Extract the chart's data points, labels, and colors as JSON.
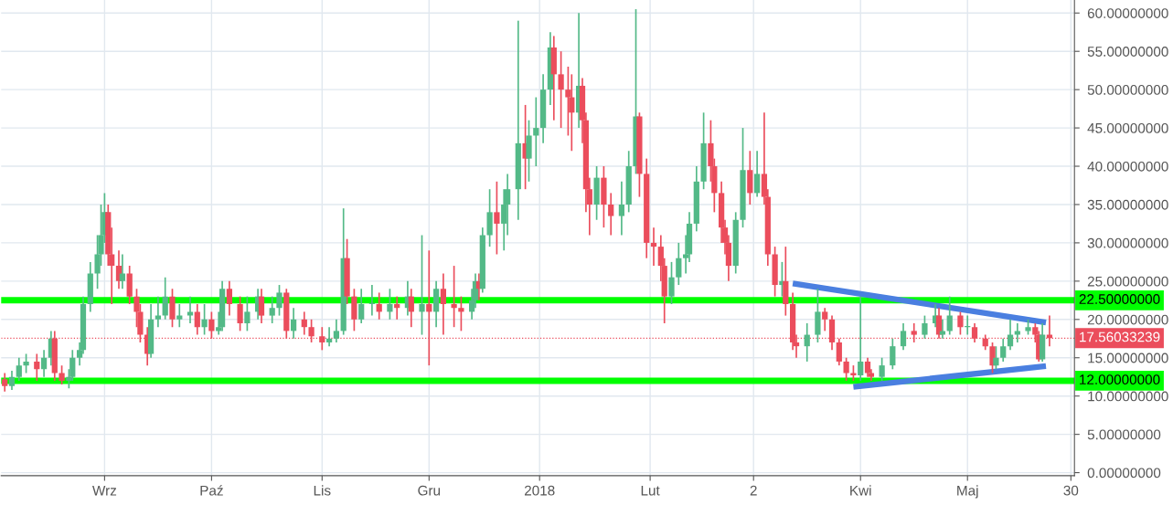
{
  "chart_data": {
    "type": "candlestick",
    "x": [
      "2017-08-04",
      "2017-08-06",
      "2017-08-08",
      "2017-08-10",
      "2017-08-13",
      "2017-08-15",
      "2017-08-17",
      "2017-08-18",
      "2017-08-20",
      "2017-08-22",
      "2017-08-23",
      "2017-08-25",
      "2017-08-26",
      "2017-08-28",
      "2017-08-30",
      "2017-08-31",
      "2017-09-01",
      "2017-09-02",
      "2017-09-03",
      "2017-09-05",
      "2017-09-06",
      "2017-09-08",
      "2017-09-10",
      "2017-09-11",
      "2017-09-13",
      "2017-09-14",
      "2017-09-16",
      "2017-09-18",
      "2017-09-20",
      "2017-09-22",
      "2017-09-25",
      "2017-09-27",
      "2017-09-29",
      "2017-10-01",
      "2017-10-03",
      "2017-10-04",
      "2017-10-06",
      "2017-10-09",
      "2017-10-11",
      "2017-10-14",
      "2017-10-15",
      "2017-10-18",
      "2017-10-20",
      "2017-10-22",
      "2017-10-24",
      "2017-10-27",
      "2017-10-29",
      "2017-11-01",
      "2017-11-03",
      "2017-11-05",
      "2017-11-07",
      "2017-11-08",
      "2017-11-10",
      "2017-11-12",
      "2017-11-15",
      "2017-11-17",
      "2017-11-20",
      "2017-11-22",
      "2017-11-25",
      "2017-11-26",
      "2017-11-29",
      "2017-12-01",
      "2017-12-03",
      "2017-12-05",
      "2017-12-08",
      "2017-12-10",
      "2017-12-13",
      "2017-12-14",
      "2017-12-15",
      "2017-12-16",
      "2017-12-18",
      "2017-12-20",
      "2017-12-22",
      "2017-12-23",
      "2017-12-26",
      "2017-12-28",
      "2017-12-29",
      "2017-12-31",
      "2018-01-02",
      "2018-01-04",
      "2018-01-05",
      "2018-01-07",
      "2018-01-09",
      "2018-01-10",
      "2018-01-12",
      "2018-01-13",
      "2018-01-14",
      "2018-01-15",
      "2018-01-17",
      "2018-01-19",
      "2018-01-21",
      "2018-01-24",
      "2018-01-26",
      "2018-01-28",
      "2018-01-29",
      "2018-01-31",
      "2018-02-02",
      "2018-02-04",
      "2018-02-05",
      "2018-02-07",
      "2018-02-09",
      "2018-02-11",
      "2018-02-12",
      "2018-02-14",
      "2018-02-16",
      "2018-02-18",
      "2018-02-19",
      "2018-02-21",
      "2018-02-22",
      "2018-02-23",
      "2018-02-25",
      "2018-02-27",
      "2018-03-01",
      "2018-03-03",
      "2018-03-05",
      "2018-03-06",
      "2018-03-08",
      "2018-03-10",
      "2018-03-11",
      "2018-03-13",
      "2018-03-14",
      "2018-03-17",
      "2018-03-20",
      "2018-03-22",
      "2018-03-24",
      "2018-03-26",
      "2018-03-28",
      "2018-03-30",
      "2018-04-01",
      "2018-04-03",
      "2018-04-04",
      "2018-04-07",
      "2018-04-10",
      "2018-04-13",
      "2018-04-16",
      "2018-04-19",
      "2018-04-22",
      "2018-04-23",
      "2018-04-24",
      "2018-04-26",
      "2018-04-29",
      "2018-05-01",
      "2018-05-03",
      "2018-05-06",
      "2018-05-08",
      "2018-05-09",
      "2018-05-11",
      "2018-05-13",
      "2018-05-15",
      "2018-05-18",
      "2018-05-20",
      "2018-05-21",
      "2018-05-22",
      "2018-05-24"
    ],
    "ohlc": [
      [
        12.2,
        13,
        10.6,
        11.3
      ],
      [
        11.3,
        13.3,
        10.8,
        12.5
      ],
      [
        12.5,
        15,
        12,
        14
      ],
      [
        14,
        15.5,
        13,
        14.5
      ],
      [
        14.5,
        15.5,
        12,
        13.5
      ],
      [
        13.5,
        16,
        12.5,
        15
      ],
      [
        15,
        18.5,
        14,
        17.5
      ],
      [
        17.5,
        18.5,
        12,
        13
      ],
      [
        13,
        14,
        11.5,
        12
      ],
      [
        12,
        13.5,
        11,
        12.5
      ],
      [
        12.5,
        16,
        12,
        15
      ],
      [
        15,
        17,
        14,
        16
      ],
      [
        16,
        23,
        15.5,
        22
      ],
      [
        22,
        27.5,
        21,
        26
      ],
      [
        26,
        31,
        24,
        28.5
      ],
      [
        28.5,
        35,
        27,
        31
      ],
      [
        31,
        36.5,
        30,
        34
      ],
      [
        34,
        35,
        27,
        28.5
      ],
      [
        28.5,
        32,
        22,
        27
      ],
      [
        27,
        29,
        24,
        25
      ],
      [
        25,
        28.5,
        24,
        26
      ],
      [
        26,
        27,
        22,
        23
      ],
      [
        23,
        24,
        19,
        21
      ],
      [
        21,
        22,
        17,
        18
      ],
      [
        18,
        19,
        14,
        15.5
      ],
      [
        15.5,
        22,
        15,
        20
      ],
      [
        20,
        23,
        19,
        20.5
      ],
      [
        20.5,
        25.5,
        20,
        23
      ],
      [
        23,
        24,
        19,
        20
      ],
      [
        20,
        22,
        19,
        20.5
      ],
      [
        20.5,
        23,
        19.5,
        21
      ],
      [
        21,
        22,
        18,
        19
      ],
      [
        19,
        22,
        18,
        20
      ],
      [
        20,
        21,
        17.5,
        18.5
      ],
      [
        18.5,
        21,
        18,
        19
      ],
      [
        19,
        25,
        18.5,
        24
      ],
      [
        24,
        25,
        20.5,
        22
      ],
      [
        22,
        23,
        18.5,
        19.5
      ],
      [
        19.5,
        23,
        18.5,
        21
      ],
      [
        21,
        24,
        20,
        23
      ],
      [
        23,
        24,
        19.5,
        20.5
      ],
      [
        20.5,
        23,
        19.5,
        21.5
      ],
      [
        21.5,
        24.5,
        20.5,
        23.5
      ],
      [
        23.5,
        24,
        17.5,
        18.5
      ],
      [
        18.5,
        21.5,
        17.5,
        20
      ],
      [
        20,
        21,
        18,
        19
      ],
      [
        19,
        20,
        17,
        17.8
      ],
      [
        17.8,
        19,
        16,
        17
      ],
      [
        17,
        19,
        16.5,
        17.5
      ],
      [
        17.5,
        20,
        17,
        18.5
      ],
      [
        18.5,
        34.5,
        18,
        28
      ],
      [
        28,
        30.5,
        22,
        23
      ],
      [
        23,
        24,
        18.5,
        20
      ],
      [
        20,
        24,
        19.5,
        22
      ],
      [
        22,
        24.5,
        20.5,
        22
      ],
      [
        22,
        23.5,
        20,
        21
      ],
      [
        21,
        24,
        20,
        22
      ],
      [
        22,
        23,
        20,
        21.5
      ],
      [
        21.5,
        25,
        20.5,
        23
      ],
      [
        23,
        24,
        19,
        21
      ],
      [
        21,
        31,
        18,
        22
      ],
      [
        22,
        29,
        14,
        21
      ],
      [
        21,
        25,
        19,
        24
      ],
      [
        24,
        26,
        18,
        22
      ],
      [
        22,
        27,
        19,
        21.5
      ],
      [
        21.5,
        23,
        18.5,
        21
      ],
      [
        21,
        24,
        20,
        22.5
      ],
      [
        22.5,
        26,
        21.5,
        25
      ],
      [
        25,
        26,
        22.5,
        24
      ],
      [
        24,
        32,
        23.5,
        31
      ],
      [
        31,
        37,
        29.5,
        34
      ],
      [
        34,
        38,
        28.5,
        32.5
      ],
      [
        32.5,
        37,
        29,
        35
      ],
      [
        35,
        39,
        31,
        37
      ],
      [
        37,
        59,
        33,
        43
      ],
      [
        43,
        48,
        37,
        41
      ],
      [
        41,
        46,
        38,
        44
      ],
      [
        44,
        49,
        40,
        45
      ],
      [
        45,
        52,
        43,
        50
      ],
      [
        50,
        57.5,
        48,
        55.5
      ],
      [
        55.5,
        57,
        46,
        52
      ],
      [
        52,
        55,
        45,
        50
      ],
      [
        50,
        53,
        44,
        49
      ],
      [
        49,
        52,
        42,
        47
      ],
      [
        47,
        60,
        45,
        50.5
      ],
      [
        50.5,
        51.5,
        43,
        46
      ],
      [
        46,
        47,
        34,
        37
      ],
      [
        37,
        38.5,
        31,
        35
      ],
      [
        35,
        40,
        33,
        38.5
      ],
      [
        38.5,
        40,
        32,
        35
      ],
      [
        35,
        36.5,
        31,
        33.5
      ],
      [
        33.5,
        38,
        31,
        35
      ],
      [
        35,
        42,
        34,
        40
      ],
      [
        40,
        60.5,
        39,
        46.5
      ],
      [
        46.5,
        47,
        36,
        39
      ],
      [
        39,
        41,
        28,
        30
      ],
      [
        30,
        32,
        27,
        29.5
      ],
      [
        29.5,
        31,
        25,
        27
      ],
      [
        27,
        28,
        19.5,
        23
      ],
      [
        23,
        27.5,
        22,
        25.5
      ],
      [
        25.5,
        30,
        24.5,
        28
      ],
      [
        28,
        31,
        26,
        28.5
      ],
      [
        28.5,
        34,
        27.5,
        32.5
      ],
      [
        32.5,
        40,
        31.5,
        38
      ],
      [
        38,
        47,
        37,
        43
      ],
      [
        43,
        46,
        38,
        40
      ],
      [
        40,
        41,
        34,
        36.5
      ],
      [
        36.5,
        38,
        30,
        32
      ],
      [
        32,
        33,
        28.5,
        30
      ],
      [
        30,
        31,
        25,
        27
      ],
      [
        27,
        34,
        26,
        33
      ],
      [
        33,
        45,
        32,
        39.5
      ],
      [
        39.5,
        42,
        35,
        36.5
      ],
      [
        36.5,
        42,
        36,
        39
      ],
      [
        39,
        47,
        35,
        36
      ],
      [
        36,
        37,
        27,
        28.5
      ],
      [
        28.5,
        29.5,
        23,
        24.5
      ],
      [
        24.5,
        27.5,
        23,
        25
      ],
      [
        25,
        29.5,
        20.5,
        22
      ],
      [
        22,
        23.5,
        16,
        17
      ],
      [
        17,
        18,
        15,
        16.5
      ],
      [
        16.5,
        19.5,
        14.5,
        18
      ],
      [
        18,
        24,
        17,
        21
      ],
      [
        21,
        21.5,
        18.5,
        20
      ],
      [
        20,
        20.5,
        16,
        17
      ],
      [
        17,
        17.5,
        14,
        14.5
      ],
      [
        14.5,
        15,
        12,
        13
      ],
      [
        13,
        14,
        12,
        12.7
      ],
      [
        12.7,
        23,
        12,
        14.5
      ],
      [
        14.5,
        15,
        12.5,
        13
      ],
      [
        13,
        13.5,
        12,
        12.5
      ],
      [
        12.5,
        15,
        12,
        14
      ],
      [
        14,
        17.5,
        13.5,
        16.5
      ],
      [
        16.5,
        19.5,
        16,
        18.5
      ],
      [
        18.5,
        19.5,
        17,
        18
      ],
      [
        18,
        20.5,
        17.5,
        19.5
      ],
      [
        19.5,
        22,
        19,
        20.5
      ],
      [
        20.5,
        21.5,
        17.5,
        18
      ],
      [
        18,
        20,
        17.5,
        18.5
      ],
      [
        18.5,
        23,
        18,
        20.5
      ],
      [
        20.5,
        21,
        18,
        19
      ],
      [
        19,
        20.5,
        18,
        19
      ],
      [
        19,
        19.5,
        17,
        17.5
      ],
      [
        17.5,
        18,
        16,
        16.5
      ],
      [
        16.5,
        17,
        13,
        14
      ],
      [
        14,
        16.5,
        13.5,
        15
      ],
      [
        15,
        17.5,
        14.5,
        16.5
      ],
      [
        16.5,
        20,
        16,
        18
      ],
      [
        18,
        19.5,
        17,
        18.5
      ],
      [
        18.5,
        20,
        18,
        19
      ],
      [
        19,
        19.5,
        17,
        18
      ],
      [
        18,
        18.5,
        14.5,
        14.8
      ],
      [
        14.8,
        19.5,
        14.5,
        18
      ],
      [
        18,
        20.5,
        16.5,
        17.56
      ]
    ],
    "colors": [
      "#eb4d5c",
      "#53b987",
      "#53b987",
      "#53b987",
      "#eb4d5c",
      "#53b987",
      "#53b987",
      "#eb4d5c",
      "#eb4d5c",
      "#53b987",
      "#53b987",
      "#53b987",
      "#53b987",
      "#53b987",
      "#53b987",
      "#53b987",
      "#53b987",
      "#eb4d5c",
      "#eb4d5c",
      "#eb4d5c",
      "#53b987",
      "#eb4d5c",
      "#eb4d5c",
      "#eb4d5c",
      "#eb4d5c",
      "#53b987",
      "#53b987",
      "#53b987",
      "#eb4d5c",
      "#53b987",
      "#53b987",
      "#eb4d5c",
      "#53b987",
      "#eb4d5c",
      "#53b987",
      "#53b987",
      "#eb4d5c",
      "#eb4d5c",
      "#53b987",
      "#53b987",
      "#eb4d5c",
      "#53b987",
      "#53b987",
      "#eb4d5c",
      "#53b987",
      "#eb4d5c",
      "#eb4d5c",
      "#eb4d5c",
      "#53b987",
      "#53b987",
      "#53b987",
      "#eb4d5c",
      "#eb4d5c",
      "#53b987",
      "#53b987",
      "#eb4d5c",
      "#53b987",
      "#eb4d5c",
      "#53b987",
      "#eb4d5c",
      "#53b987",
      "#eb4d5c",
      "#53b987",
      "#eb4d5c",
      "#eb4d5c",
      "#eb4d5c",
      "#53b987",
      "#53b987",
      "#eb4d5c",
      "#53b987",
      "#53b987",
      "#eb4d5c",
      "#53b987",
      "#53b987",
      "#53b987",
      "#eb4d5c",
      "#53b987",
      "#53b987",
      "#53b987",
      "#53b987",
      "#eb4d5c",
      "#eb4d5c",
      "#eb4d5c",
      "#eb4d5c",
      "#53b987",
      "#eb4d5c",
      "#eb4d5c",
      "#eb4d5c",
      "#53b987",
      "#eb4d5c",
      "#eb4d5c",
      "#53b987",
      "#53b987",
      "#53b987",
      "#eb4d5c",
      "#eb4d5c",
      "#eb4d5c",
      "#eb4d5c",
      "#eb4d5c",
      "#53b987",
      "#53b987",
      "#53b987",
      "#53b987",
      "#53b987",
      "#53b987",
      "#eb4d5c",
      "#eb4d5c",
      "#eb4d5c",
      "#eb4d5c",
      "#eb4d5c",
      "#53b987",
      "#53b987",
      "#eb4d5c",
      "#53b987",
      "#eb4d5c",
      "#eb4d5c",
      "#eb4d5c",
      "#53b987",
      "#eb4d5c",
      "#eb4d5c",
      "#eb4d5c",
      "#53b987",
      "#53b987",
      "#eb4d5c",
      "#eb4d5c",
      "#eb4d5c",
      "#eb4d5c",
      "#eb4d5c",
      "#53b987",
      "#eb4d5c",
      "#eb4d5c",
      "#53b987",
      "#53b987",
      "#53b987",
      "#eb4d5c",
      "#53b987",
      "#53b987",
      "#eb4d5c",
      "#53b987",
      "#53b987",
      "#eb4d5c",
      "#53b987",
      "#eb4d5c",
      "#eb4d5c",
      "#eb4d5c",
      "#53b987",
      "#53b987",
      "#53b987",
      "#53b987",
      "#53b987",
      "#eb4d5c",
      "#eb4d5c",
      "#53b987",
      "#eb4d5c"
    ],
    "series": [
      {
        "type": "line",
        "color": "#4a7fe0",
        "x": [
          "2018-03-13",
          "2018-05-23"
        ],
        "values": [
          24.7,
          19.6
        ]
      },
      {
        "type": "line",
        "color": "#4a7fe0",
        "x": [
          "2018-03-30",
          "2018-05-23"
        ],
        "values": [
          11.2,
          13.9
        ]
      }
    ],
    "ref_lines": [
      {
        "axis": "y",
        "value": 22.5,
        "label": "22.50000000",
        "color": "#00ff00",
        "line_style": "solid"
      },
      {
        "axis": "y",
        "value": 12,
        "label": "12.00000000",
        "color": "#00ff00",
        "line_style": "solid"
      },
      {
        "axis": "y",
        "value": 17.56033239,
        "label": "17.56033239",
        "color": "#eb4d5c",
        "line_style": "dotted"
      }
    ],
    "xlim": [
      "2017-08-03",
      "2018-05-31"
    ],
    "xticks": [
      {
        "value": "2017-09-01",
        "label": "Wrz"
      },
      {
        "value": "2017-10-01",
        "label": "Paź"
      },
      {
        "value": "2017-11-01",
        "label": "Lis"
      },
      {
        "value": "2017-12-01",
        "label": "Gru"
      },
      {
        "value": "2018-01-01",
        "label": "2018"
      },
      {
        "value": "2018-02-01",
        "label": "Lut"
      },
      {
        "value": "2018-03-02",
        "label": "2"
      },
      {
        "value": "2018-04-01",
        "label": "Kwi"
      },
      {
        "value": "2018-05-01",
        "label": "Maj"
      },
      {
        "value": "2018-05-30",
        "label": "30"
      }
    ],
    "ylim": [
      -0.4,
      61.7
    ],
    "yticks": [
      {
        "value": 0,
        "label": "0.00000000"
      },
      {
        "value": 5,
        "label": "5.00000000"
      },
      {
        "value": 10,
        "label": "10.00000000"
      },
      {
        "value": 15,
        "label": "15.00000000"
      },
      {
        "value": 20,
        "label": "20.00000000"
      },
      {
        "value": 25,
        "label": "25.00000000"
      },
      {
        "value": 30,
        "label": "30.00000000"
      },
      {
        "value": 35,
        "label": "35.00000000"
      },
      {
        "value": 40,
        "label": "40.00000000"
      },
      {
        "value": 45,
        "label": "45.00000000"
      },
      {
        "value": 50,
        "label": "50.00000000"
      },
      {
        "value": 55,
        "label": "55.00000000"
      },
      {
        "value": 60,
        "label": "60.00000000"
      }
    ],
    "grid": true
  }
}
